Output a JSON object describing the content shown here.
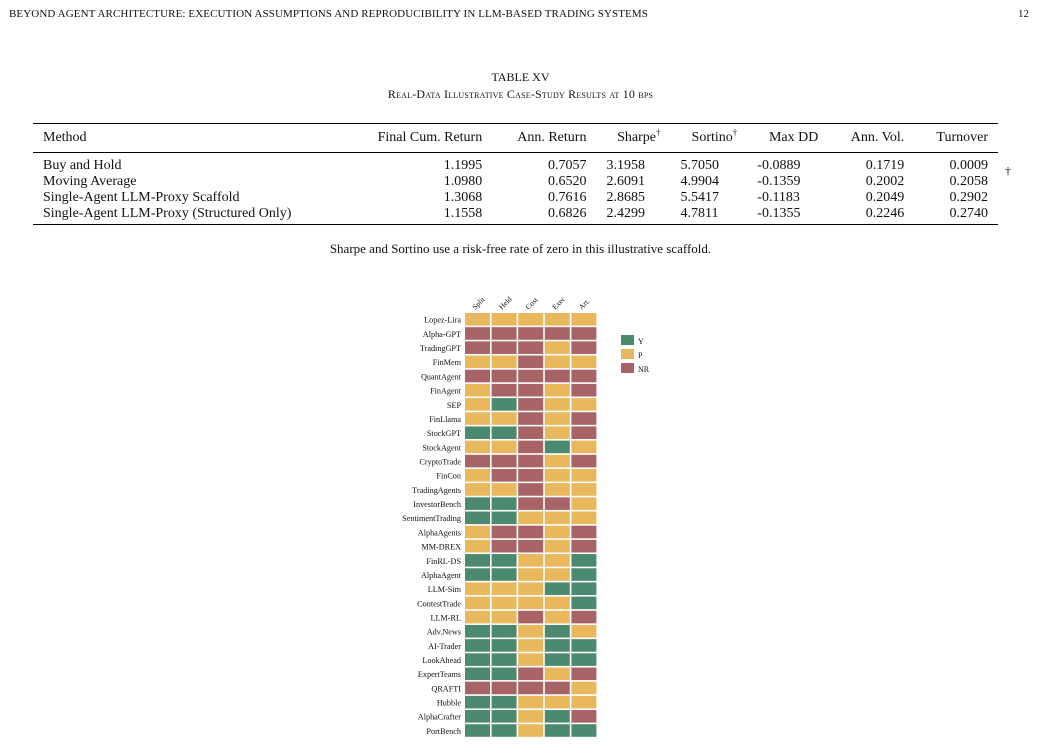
{
  "header": {
    "running_title": "BEYOND AGENT ARCHITECTURE: EXECUTION ASSUMPTIONS AND REPRODUCIBILITY IN LLM-BASED TRADING SYSTEMS",
    "page_number": "12"
  },
  "table": {
    "label": "TABLE XV",
    "caption": "Real-Data Illustrative Case-Study Results at 10 bps",
    "columns": [
      "Method",
      "Final Cum. Return",
      "Ann. Return",
      "Sharpe",
      "Sortino",
      "Max DD",
      "Ann. Vol.",
      "Turnover"
    ],
    "dagger": "†",
    "rows": [
      {
        "method": "Buy and Hold",
        "final_cum_return": "1.1995",
        "ann_return": "0.7057",
        "sharpe": "3.1958",
        "sortino": "5.7050",
        "max_dd": "-0.0889",
        "ann_vol": "0.1719",
        "turnover": "0.0009"
      },
      {
        "method": "Moving Average",
        "final_cum_return": "1.0980",
        "ann_return": "0.6520",
        "sharpe": "2.6091",
        "sortino": "4.9904",
        "max_dd": "-0.1359",
        "ann_vol": "0.2002",
        "turnover": "0.2058"
      },
      {
        "method": "Single-Agent LLM-Proxy Scaffold",
        "final_cum_return": "1.3068",
        "ann_return": "0.7616",
        "sharpe": "2.8685",
        "sortino": "5.5417",
        "max_dd": "-0.1183",
        "ann_vol": "0.2049",
        "turnover": "0.2902"
      },
      {
        "method": "Single-Agent LLM-Proxy (Structured Only)",
        "final_cum_return": "1.1558",
        "ann_return": "0.6826",
        "sharpe": "2.4299",
        "sortino": "4.7811",
        "max_dd": "-0.1355",
        "ann_vol": "0.2246",
        "turnover": "0.2740"
      }
    ],
    "note": "Sharpe and Sortino use a risk-free rate of zero in this illustrative scaffold."
  },
  "chart_data": {
    "type": "heatmap",
    "columns": [
      "Split",
      "Held",
      "Cost",
      "Exec",
      "Art."
    ],
    "rows": [
      "Lopez-Lira",
      "Alpha-GPT",
      "TradingGPT",
      "FinMem",
      "QuantAgent",
      "FinAgent",
      "SEP",
      "FinLlama",
      "StockGPT",
      "StockAgent",
      "CryptoTrade",
      "FinCon",
      "TradingAgents",
      "InvestorBench",
      "SentimentTrading",
      "AlphaAgents",
      "MM-DREX",
      "FinRL-DS",
      "AlphaAgent",
      "LLM-Sim",
      "ContestTrade",
      "LLM-RL",
      "Adv.News",
      "AI-Trader",
      "LookAhead",
      "ExpertTeams",
      "QRAFTI",
      "Hubble",
      "AlphaCrafter",
      "PortBench"
    ],
    "values": [
      [
        "P",
        "P",
        "P",
        "P",
        "P"
      ],
      [
        "NR",
        "NR",
        "NR",
        "NR",
        "NR"
      ],
      [
        "NR",
        "NR",
        "NR",
        "P",
        "NR"
      ],
      [
        "P",
        "P",
        "NR",
        "P",
        "P"
      ],
      [
        "NR",
        "NR",
        "NR",
        "NR",
        "NR"
      ],
      [
        "P",
        "NR",
        "NR",
        "P",
        "NR"
      ],
      [
        "P",
        "Y",
        "NR",
        "P",
        "P"
      ],
      [
        "P",
        "P",
        "NR",
        "P",
        "NR"
      ],
      [
        "Y",
        "Y",
        "NR",
        "P",
        "NR"
      ],
      [
        "P",
        "P",
        "NR",
        "Y",
        "P"
      ],
      [
        "NR",
        "NR",
        "NR",
        "P",
        "NR"
      ],
      [
        "P",
        "NR",
        "NR",
        "P",
        "P"
      ],
      [
        "P",
        "P",
        "NR",
        "P",
        "P"
      ],
      [
        "Y",
        "Y",
        "NR",
        "NR",
        "P"
      ],
      [
        "Y",
        "Y",
        "P",
        "P",
        "P"
      ],
      [
        "P",
        "NR",
        "NR",
        "P",
        "NR"
      ],
      [
        "P",
        "NR",
        "NR",
        "P",
        "NR"
      ],
      [
        "Y",
        "Y",
        "P",
        "P",
        "Y"
      ],
      [
        "Y",
        "Y",
        "P",
        "P",
        "Y"
      ],
      [
        "P",
        "P",
        "P",
        "Y",
        "Y"
      ],
      [
        "P",
        "P",
        "P",
        "P",
        "Y"
      ],
      [
        "P",
        "P",
        "NR",
        "P",
        "NR"
      ],
      [
        "Y",
        "Y",
        "P",
        "Y",
        "P"
      ],
      [
        "Y",
        "Y",
        "P",
        "Y",
        "Y"
      ],
      [
        "Y",
        "Y",
        "P",
        "Y",
        "Y"
      ],
      [
        "Y",
        "Y",
        "NR",
        "P",
        "NR"
      ],
      [
        "NR",
        "NR",
        "NR",
        "NR",
        "P"
      ],
      [
        "Y",
        "Y",
        "P",
        "P",
        "P"
      ],
      [
        "Y",
        "Y",
        "P",
        "Y",
        "NR"
      ],
      [
        "Y",
        "Y",
        "P",
        "Y",
        "Y"
      ]
    ],
    "legend": [
      {
        "label": "Y",
        "color": "#4c8a6f"
      },
      {
        "label": "P",
        "color": "#e9b85c"
      },
      {
        "label": "NR",
        "color": "#a86366"
      }
    ],
    "legend_position": "right"
  }
}
